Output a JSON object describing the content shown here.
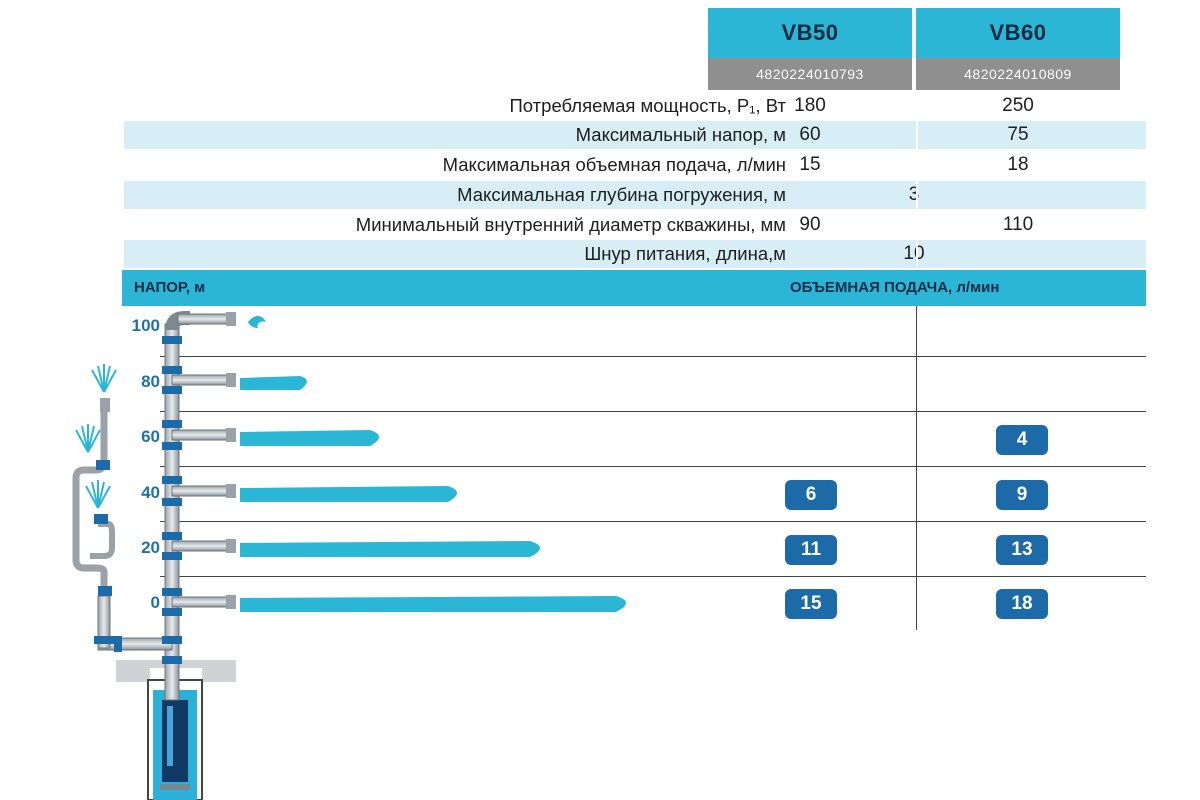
{
  "models": [
    {
      "name": "VB50",
      "code": "4820224010793"
    },
    {
      "name": "VB60",
      "code": "4820224010809"
    }
  ],
  "specs": [
    {
      "label": "Потребляемая мощность, P₁, Вт",
      "v1": "180",
      "v2": "250"
    },
    {
      "label": "Максимальный напор, м",
      "v1": "60",
      "v2": "75"
    },
    {
      "label": "Максимальная объемная подача, л/мин",
      "v1": "15",
      "v2": "18"
    },
    {
      "label": "Максимальная глубина погружения, м",
      "merged": "3"
    },
    {
      "label": "Минимальный внутренний диаметр скважины, мм",
      "v1": "90",
      "v2": "110"
    },
    {
      "label": "Шнур питания, длина,м",
      "merged": "10"
    }
  ],
  "section": {
    "head_label": "НАПОР,  м",
    "flow_label": "ОБЪЕМНАЯ ПОДАЧА,  л/мин"
  },
  "heads": [
    "100",
    "80",
    "60",
    "40",
    "20",
    "0"
  ],
  "flow": {
    "vb50": [
      "",
      "",
      "",
      "6",
      "11",
      "15"
    ],
    "vb60": [
      "",
      "",
      "4",
      "9",
      "13",
      "18"
    ]
  },
  "colors": {
    "accent": "#2cb6d6",
    "badge": "#1d6aa8",
    "code_bg": "#8f8f8f",
    "row_shade": "#d8eef6",
    "head_text": "#1f72a8"
  }
}
